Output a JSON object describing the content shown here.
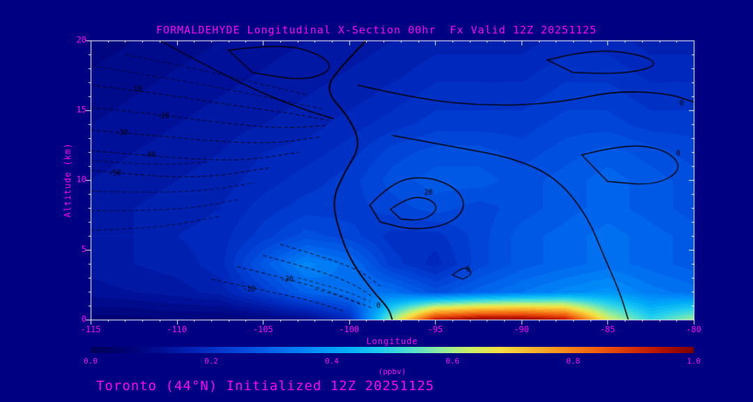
{
  "title": "FORMALDEHYDE Longitudinal X-Section 00hr  Fx Valid 12Z 20251125",
  "footer": "Toronto (44°N) Initialized 12Z 20251125",
  "colors": {
    "background": "#000082",
    "text": "#FF00F0",
    "frame": "#FFFFFF",
    "contour": "#000000"
  },
  "axes": {
    "x_label": "Longitude",
    "y_label": "Altitude (km)",
    "x_ticks": [
      -115,
      -110,
      -105,
      -100,
      -95,
      -90,
      -85,
      -80
    ],
    "y_ticks": [
      0,
      5,
      10,
      15,
      20
    ],
    "x_range": [
      -115,
      -80
    ],
    "y_range": [
      0,
      20
    ]
  },
  "colorbar": {
    "ticks": [
      "0.0",
      "0.2",
      "0.4",
      "0.6",
      "0.8",
      "1.0"
    ],
    "label": "(ppbv)",
    "min": 0,
    "max": 1
  },
  "chart_data": {
    "type": "heatmap",
    "title": "FORMALDEHYDE Longitudinal X-Section 00hr  Fx Valid 12Z 20251125",
    "subtitle": "Toronto (44°N) Initialized 12Z 20251125",
    "xlabel": "Longitude",
    "ylabel": "Altitude (km)",
    "units": "ppbv",
    "x_range": [
      -115,
      -80
    ],
    "y_range": [
      0,
      20
    ],
    "value_range": [
      0,
      1
    ],
    "grid": {
      "x_start": -115,
      "x_step": 2.5,
      "y_start": 0,
      "y_step": 2,
      "values_bottom_up": [
        [
          0.06,
          0.06,
          0.07,
          0.06,
          0.08,
          0.1,
          0.18,
          0.6,
          0.95,
          1.0,
          1.0,
          0.95,
          0.65,
          0.5,
          0.6
        ],
        [
          0.12,
          0.13,
          0.14,
          0.16,
          0.22,
          0.3,
          0.33,
          0.32,
          0.26,
          0.3,
          0.33,
          0.36,
          0.38,
          0.34,
          0.32
        ],
        [
          0.14,
          0.15,
          0.16,
          0.18,
          0.28,
          0.36,
          0.32,
          0.22,
          0.18,
          0.24,
          0.28,
          0.3,
          0.32,
          0.3,
          0.28
        ],
        [
          0.15,
          0.15,
          0.17,
          0.18,
          0.22,
          0.26,
          0.24,
          0.2,
          0.2,
          0.24,
          0.28,
          0.3,
          0.32,
          0.3,
          0.28
        ],
        [
          0.14,
          0.15,
          0.16,
          0.17,
          0.2,
          0.22,
          0.22,
          0.24,
          0.26,
          0.24,
          0.26,
          0.28,
          0.3,
          0.28,
          0.26
        ],
        [
          0.13,
          0.14,
          0.15,
          0.16,
          0.18,
          0.2,
          0.22,
          0.26,
          0.28,
          0.28,
          0.26,
          0.28,
          0.3,
          0.28,
          0.26
        ],
        [
          0.12,
          0.13,
          0.14,
          0.15,
          0.17,
          0.18,
          0.2,
          0.24,
          0.26,
          0.26,
          0.24,
          0.26,
          0.28,
          0.26,
          0.24
        ],
        [
          0.11,
          0.12,
          0.13,
          0.14,
          0.15,
          0.16,
          0.18,
          0.2,
          0.22,
          0.22,
          0.22,
          0.24,
          0.24,
          0.22,
          0.22
        ],
        [
          0.1,
          0.11,
          0.12,
          0.13,
          0.14,
          0.15,
          0.16,
          0.18,
          0.2,
          0.2,
          0.2,
          0.22,
          0.22,
          0.2,
          0.2
        ],
        [
          0.09,
          0.1,
          0.11,
          0.12,
          0.13,
          0.14,
          0.15,
          0.16,
          0.18,
          0.18,
          0.18,
          0.2,
          0.2,
          0.18,
          0.18
        ],
        [
          0.08,
          0.09,
          0.1,
          0.11,
          0.12,
          0.13,
          0.14,
          0.15,
          0.16,
          0.16,
          0.16,
          0.18,
          0.18,
          0.16,
          0.16
        ]
      ]
    },
    "colormap": [
      [
        0.0,
        "#000058"
      ],
      [
        0.06,
        "#000074"
      ],
      [
        0.12,
        "#001098"
      ],
      [
        0.18,
        "#0028bc"
      ],
      [
        0.24,
        "#0044d8"
      ],
      [
        0.3,
        "#0064ec"
      ],
      [
        0.36,
        "#0088f8"
      ],
      [
        0.42,
        "#00acf8"
      ],
      [
        0.48,
        "#20ccf0"
      ],
      [
        0.53,
        "#50e0d0"
      ],
      [
        0.58,
        "#90eca0"
      ],
      [
        0.63,
        "#ccf068"
      ],
      [
        0.68,
        "#f4e044"
      ],
      [
        0.73,
        "#f8b830"
      ],
      [
        0.78,
        "#f89020"
      ],
      [
        0.84,
        "#f06010"
      ],
      [
        0.9,
        "#d83008"
      ],
      [
        0.95,
        "#b01000"
      ],
      [
        1.0,
        "#7c0000"
      ]
    ],
    "contours": [
      {
        "label": "0",
        "label_at": [
          -98.3,
          1.0
        ],
        "dashed": false,
        "width": 2,
        "pts": [
          [
            -99,
            20
          ],
          [
            -100.6,
            18
          ],
          [
            -101.4,
            16.4
          ],
          [
            -100,
            14.5
          ],
          [
            -99.3,
            12.5
          ],
          [
            -100.3,
            10.5
          ],
          [
            -101,
            8.5
          ],
          [
            -100.5,
            6
          ],
          [
            -99.8,
            4
          ],
          [
            -98.6,
            2
          ],
          [
            -97.7,
            0.8
          ],
          [
            -97.5,
            0
          ]
        ]
      },
      {
        "label": "20",
        "label_at": [
          -95.4,
          9.1
        ],
        "dashed": false,
        "width": 1.6,
        "closed": true,
        "pts": [
          [
            -98.8,
            8.2
          ],
          [
            -97.5,
            9.9
          ],
          [
            -95.5,
            10.3
          ],
          [
            -93.7,
            9.4
          ],
          [
            -93.2,
            8.0
          ],
          [
            -94.2,
            6.8
          ],
          [
            -96.3,
            6.4
          ],
          [
            -98.2,
            7.0
          ]
        ]
      },
      {
        "label": "",
        "dashed": false,
        "width": 1.4,
        "closed": true,
        "pts": [
          [
            -97.6,
            7.9
          ],
          [
            -96.6,
            8.8
          ],
          [
            -95.3,
            8.7
          ],
          [
            -94.8,
            7.9
          ],
          [
            -95.7,
            7.1
          ],
          [
            -97.0,
            7.2
          ]
        ]
      },
      {
        "label": "",
        "dashed": false,
        "width": 1.4,
        "pts": [
          [
            -111,
            20
          ],
          [
            -108,
            18
          ],
          [
            -105,
            16.2
          ],
          [
            -102.5,
            15
          ],
          [
            -100.9,
            14.4
          ]
        ]
      },
      {
        "label": "",
        "dashed": false,
        "width": 1.4,
        "closed": true,
        "pts": [
          [
            -107,
            19.3
          ],
          [
            -104,
            19.8
          ],
          [
            -101.6,
            19.0
          ],
          [
            -100.9,
            17.9
          ],
          [
            -102.6,
            17.1
          ],
          [
            -105.6,
            17.7
          ]
        ]
      },
      {
        "label": "0",
        "label_at": [
          -80.7,
          15.5
        ],
        "dashed": false,
        "width": 1.6,
        "pts": [
          [
            -99.5,
            16.8
          ],
          [
            -96,
            15.8
          ],
          [
            -92,
            15.3
          ],
          [
            -88,
            15.5
          ],
          [
            -84.5,
            16.4
          ],
          [
            -81.5,
            16.2
          ],
          [
            -80,
            15.6
          ]
        ]
      },
      {
        "label": "",
        "dashed": false,
        "width": 1.4,
        "closed": true,
        "pts": [
          [
            -88.5,
            18.6
          ],
          [
            -86,
            19.4
          ],
          [
            -83,
            19.0
          ],
          [
            -82,
            18.2
          ],
          [
            -84,
            17.6
          ],
          [
            -87,
            17.7
          ]
        ]
      },
      {
        "label": "",
        "dashed": false,
        "width": 1.6,
        "pts": [
          [
            -97.5,
            13.2
          ],
          [
            -94,
            12.4
          ],
          [
            -90.5,
            11.6
          ],
          [
            -88,
            10.2
          ],
          [
            -86.2,
            7.5
          ],
          [
            -85.2,
            4.5
          ],
          [
            -84.3,
            2
          ],
          [
            -83.8,
            0
          ]
        ]
      },
      {
        "label": "0",
        "label_at": [
          -80.9,
          11.9
        ],
        "dashed": false,
        "width": 1.4,
        "closed": true,
        "pts": [
          [
            -86.5,
            11.8
          ],
          [
            -84,
            12.6
          ],
          [
            -81.6,
            12.2
          ],
          [
            -80.6,
            10.8
          ],
          [
            -82.2,
            9.6
          ],
          [
            -85,
            9.9
          ]
        ]
      },
      {
        "label": "0",
        "label_at": [
          -93.1,
          3.6
        ],
        "dashed": false,
        "width": 1.2,
        "closed": true,
        "pts": [
          [
            -94,
            3.2
          ],
          [
            -93.3,
            3.9
          ],
          [
            -92.8,
            3.3
          ],
          [
            -93.4,
            2.9
          ]
        ]
      },
      {
        "label": "-10",
        "label_at": [
          -112.4,
          16.5
        ],
        "dashed": true,
        "width": 1,
        "pts": [
          [
            -115,
            16.8
          ],
          [
            -111,
            16.2
          ],
          [
            -107,
            15.4
          ],
          [
            -103.5,
            14.8
          ],
          [
            -101.2,
            14.3
          ]
        ]
      },
      {
        "label": "-20",
        "label_at": [
          -110.8,
          14.6
        ],
        "dashed": true,
        "width": 1,
        "pts": [
          [
            -115,
            15.2
          ],
          [
            -111,
            14.7
          ],
          [
            -107.5,
            14.1
          ],
          [
            -104,
            13.7
          ],
          [
            -101.4,
            13.9
          ]
        ]
      },
      {
        "label": "-30",
        "label_at": [
          -113.2,
          13.4
        ],
        "dashed": true,
        "width": 1,
        "pts": [
          [
            -115,
            13.6
          ],
          [
            -111.5,
            13.2
          ],
          [
            -108,
            12.8
          ],
          [
            -104.5,
            12.6
          ],
          [
            -101.6,
            13.1
          ]
        ]
      },
      {
        "label": "-40",
        "label_at": [
          -111.6,
          11.8
        ],
        "dashed": true,
        "width": 1,
        "pts": [
          [
            -115,
            12.1
          ],
          [
            -112,
            11.8
          ],
          [
            -109,
            11.5
          ],
          [
            -106,
            11.4
          ],
          [
            -102.9,
            12.0
          ]
        ]
      },
      {
        "label": "-50",
        "label_at": [
          -113.6,
          10.5
        ],
        "dashed": true,
        "width": 1,
        "pts": [
          [
            -115,
            10.7
          ],
          [
            -112.5,
            10.4
          ],
          [
            -110,
            10.2
          ],
          [
            -107.5,
            10.3
          ],
          [
            -104.6,
            10.9
          ]
        ]
      },
      {
        "label": "-20",
        "label_at": [
          -103.6,
          2.9
        ],
        "dashed": true,
        "width": 1,
        "pts": [
          [
            -106.5,
            3.8
          ],
          [
            -103.5,
            2.9
          ],
          [
            -100.8,
            1.9
          ],
          [
            -99.2,
            1.0
          ]
        ]
      },
      {
        "label": "-10",
        "label_at": [
          -105.8,
          2.2
        ],
        "dashed": true,
        "width": 1,
        "pts": [
          [
            -108,
            2.9
          ],
          [
            -105,
            2.1
          ],
          [
            -102,
            1.3
          ],
          [
            -100.3,
            0.6
          ]
        ]
      },
      {
        "label": "",
        "dashed": true,
        "width": 1,
        "pts": [
          [
            -105,
            4.6
          ],
          [
            -102,
            3.6
          ],
          [
            -99.8,
            2.6
          ],
          [
            -98.6,
            1.6
          ]
        ]
      },
      {
        "label": "",
        "dashed": true,
        "width": 1,
        "pts": [
          [
            -104,
            5.4
          ],
          [
            -101.2,
            4.4
          ],
          [
            -99.2,
            3.4
          ],
          [
            -98.2,
            2.4
          ]
        ]
      },
      {
        "label": "",
        "dashed": true,
        "width": 0.8,
        "pts": [
          [
            -115,
            18.2
          ],
          [
            -110,
            17.2
          ],
          [
            -105,
            16.0
          ],
          [
            -101.6,
            15.1
          ]
        ]
      },
      {
        "label": "",
        "dashed": true,
        "width": 0.8,
        "pts": [
          [
            -113,
            19.0
          ],
          [
            -109,
            18.0
          ],
          [
            -105.5,
            17.0
          ],
          [
            -102.4,
            16.1
          ]
        ]
      },
      {
        "label": "",
        "dashed": true,
        "width": 0.8,
        "pts": [
          [
            -115,
            9.2
          ],
          [
            -112,
            9.1
          ],
          [
            -108.5,
            9.2
          ],
          [
            -105.5,
            9.8
          ]
        ]
      },
      {
        "label": "",
        "dashed": true,
        "width": 0.8,
        "pts": [
          [
            -115,
            7.8
          ],
          [
            -112,
            7.8
          ],
          [
            -109,
            8.0
          ],
          [
            -106.5,
            8.6
          ]
        ]
      },
      {
        "label": "",
        "dashed": true,
        "width": 0.8,
        "pts": [
          [
            -115,
            6.4
          ],
          [
            -112.5,
            6.5
          ],
          [
            -110,
            6.8
          ],
          [
            -107.5,
            7.4
          ]
        ]
      },
      {
        "label": "",
        "dashed": true,
        "width": 0.8,
        "pts": [
          [
            -115,
            11.4
          ],
          [
            -112.8,
            11.2
          ],
          [
            -110.5,
            11.1
          ],
          [
            -108.2,
            11.3
          ]
        ]
      },
      {
        "label": "",
        "dashed": true,
        "width": 0.8,
        "pts": [
          [
            -103,
            3.0
          ],
          [
            -100.5,
            2.2
          ],
          [
            -98.8,
            1.3
          ]
        ]
      },
      {
        "label": "",
        "dashed": true,
        "width": 0.8,
        "pts": [
          [
            -102,
            2.2
          ],
          [
            -100,
            1.5
          ],
          [
            -98.6,
            0.8
          ]
        ]
      }
    ]
  }
}
